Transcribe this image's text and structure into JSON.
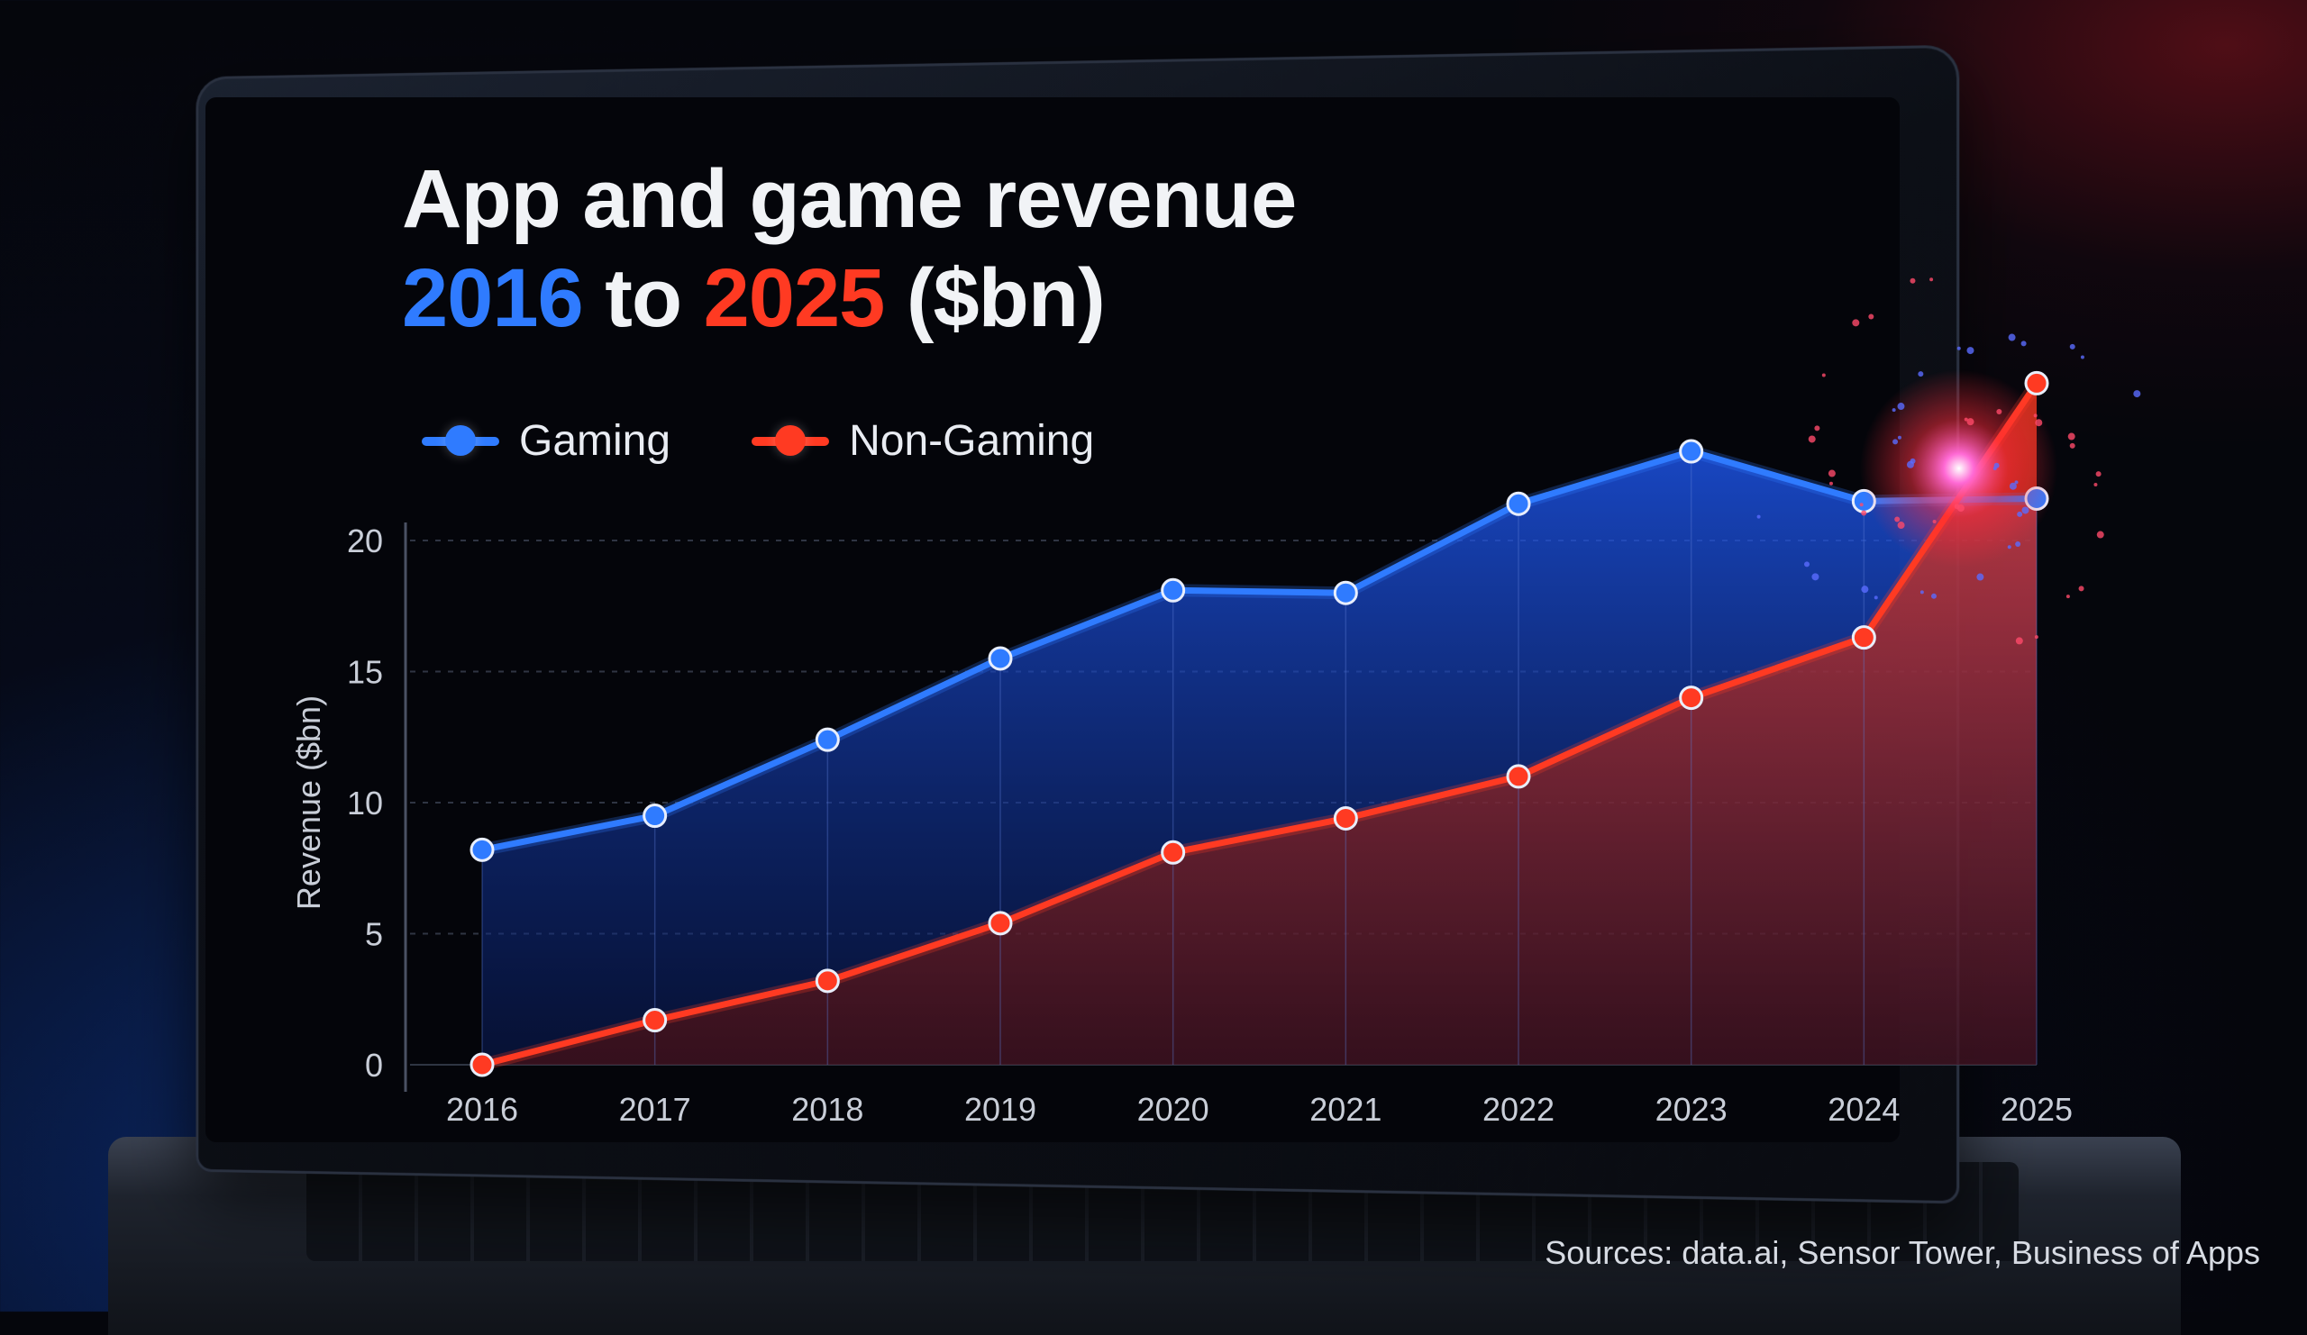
{
  "title_line1": "App and game revenue",
  "title_year_start": "2016",
  "title_to": "to",
  "title_year_end": "2025",
  "title_unit": "($bn)",
  "sources": "Sources: data.ai, Sensor Tower, Business of Apps",
  "colors": {
    "gaming": "#2f7bff",
    "non_gaming": "#ff3a22"
  },
  "chart_data": {
    "type": "area",
    "categories": [
      "2016",
      "2017",
      "2018",
      "2019",
      "2020",
      "2021",
      "2022",
      "2023",
      "2024",
      "2025"
    ],
    "ylabel": "Revenue ($bn)",
    "xlabel": "",
    "ylim": [
      0,
      20
    ],
    "yticks": [
      0,
      5,
      10,
      15,
      20
    ],
    "grid": true,
    "legend": "top-left",
    "series": [
      {
        "name": "Gaming",
        "color": "#2f7bff",
        "values": [
          8.2,
          9.5,
          12.4,
          15.5,
          18.1,
          18.0,
          21.4,
          23.4,
          21.5,
          21.6
        ]
      },
      {
        "name": "Non-Gaming",
        "color": "#ff3a22",
        "values": [
          0.0,
          1.7,
          3.2,
          5.4,
          8.1,
          9.4,
          11.0,
          14.0,
          16.3,
          26.0
        ]
      }
    ]
  }
}
